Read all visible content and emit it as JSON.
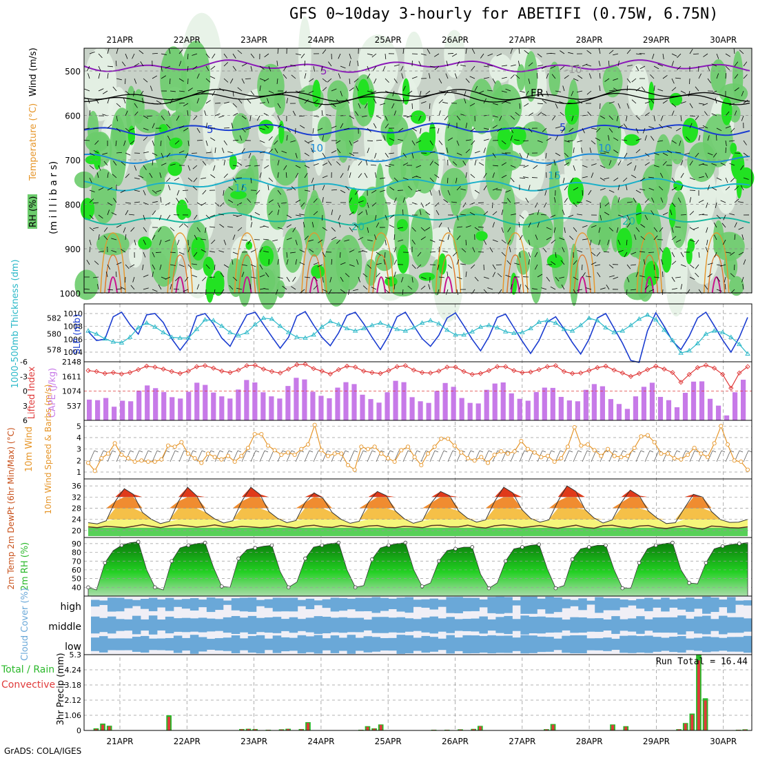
{
  "title": "GFS 0~10day 3-hourly for ABETIFI (0.75W, 6.75N)",
  "credit": "GrADS: COLA/IGES",
  "dates": [
    "21APR",
    "22APR",
    "23APR",
    "24APR",
    "25APR",
    "26APR",
    "27APR",
    "28APR",
    "29APR",
    "30APR"
  ],
  "colors": {
    "rh_light": "#e6f2e6",
    "rh_mid": "#c8d2c8",
    "rh_green": "#6ccc6c",
    "rh_bright": "#22e222",
    "slp": "#1a3cd0",
    "thick": "#2ab8c8",
    "li": "#e03a3a",
    "cape": "#c77ae8",
    "wind10": "#e6962a",
    "precip_total": "#2ab82a",
    "precip_conv": "#e03a3a",
    "cloud": "#6aa8d8",
    "cloud_bg": "#f0eff6"
  },
  "panels": {
    "upper": {
      "label_y": "(m i l l i b a r s)",
      "label_rh": "RH (%)",
      "label_temp": "Temperature (°C)",
      "label_wind": "Wind (m/s)",
      "levels": [
        "500",
        "600",
        "700",
        "800",
        "900",
        "1000"
      ],
      "contours": [
        "5",
        "FR",
        "5",
        "5",
        "10",
        "10",
        "15",
        "15",
        "20",
        "20",
        "-10"
      ]
    },
    "slp": {
      "label_left": "1000-500mb Thickness (dm)",
      "label_right": "SLP (mb)",
      "ticks_left": [
        "582",
        "580",
        "578"
      ],
      "ticks_right": [
        "1010",
        "1008",
        "1006",
        "1004"
      ]
    },
    "cape": {
      "label_left": "Lifted Index",
      "label_right": "CAPE (J/kg)",
      "ticks_left": [
        "-6",
        "-3",
        "0",
        "3",
        "6"
      ],
      "ticks_right": [
        "2148",
        "1611",
        "1074",
        "537"
      ]
    },
    "wind10": {
      "label": "10m Wind Speed & Barbs (m/s)",
      "ticks": [
        "5",
        "4",
        "3",
        "2",
        "1"
      ]
    },
    "temp2m": {
      "label": "2m Temp 2m DewPt (6hr Min/Max) (°C)",
      "ticks": [
        "36",
        "32",
        "28",
        "24",
        "20"
      ]
    },
    "rh2m": {
      "label": "2m RH (%)",
      "ticks": [
        "90",
        "80",
        "70",
        "60",
        "50",
        "40"
      ]
    },
    "cloud": {
      "label": "Cloud Cover (%)",
      "levels": [
        "high",
        "middle",
        "low"
      ]
    },
    "precip": {
      "label_total": "Total / Rain",
      "label_conv": "Convective",
      "label_y": "3hr Precip (mm)",
      "ticks": [
        "5.3",
        "4.24",
        "3.18",
        "2.12",
        "1.06",
        "0"
      ],
      "run_total": "Run Total = 16.44"
    }
  },
  "chart_data": [
    {
      "type": "line",
      "title": "1000-500mb Thickness (dm) / SLP (mb)",
      "series": [
        {
          "name": "SLP (mb)",
          "values": [
            1007.2,
            1005.8,
            1006.0,
            1009.5,
            1010.2,
            1008.3,
            1006.8,
            1009.8,
            1010.0,
            1008.6,
            1006.1,
            1004.3,
            1006.0,
            1009.6,
            1010.0,
            1008.4,
            1006.2,
            1004.9,
            1007.4,
            1009.8,
            1010.2,
            1008.3,
            1006.4,
            1004.6,
            1006.3,
            1009.6,
            1010.3,
            1008.2,
            1006.3,
            1005.0,
            1007.0,
            1009.7,
            1010.2,
            1008.4,
            1006.3,
            1004.4,
            1006.6,
            1009.5,
            1010.2,
            1008.1,
            1006.1,
            1004.9,
            1006.6,
            1009.3,
            1010.1,
            1008.1,
            1006.0,
            1004.2,
            1006.4,
            1009.4,
            1009.9,
            1007.8,
            1005.7,
            1003.8,
            1005.8,
            1008.7,
            1009.5,
            1007.6,
            1005.5,
            1003.7,
            1006.0,
            1009.3,
            1010.0,
            1007.7,
            1005.4,
            1002.7,
            1002.4,
            1007.3,
            1010.1,
            1008.0,
            1005.7,
            1004.4,
            1006.5,
            1009.3,
            1010.2,
            1008.1,
            1005.9,
            1004.0,
            1006.3,
            1009.4
          ]
        },
        {
          "name": "1000-500mb Thickness (dm)",
          "values": [
            580.4,
            580.0,
            579.4,
            579.0,
            578.9,
            579.6,
            580.8,
            581.4,
            580.9,
            580.2,
            579.6,
            579.5,
            579.5,
            580.6,
            581.8,
            581.7,
            581.0,
            580.2,
            579.8,
            580.2,
            581.2,
            582.0,
            581.9,
            581.0,
            580.2,
            579.6,
            579.5,
            579.9,
            580.9,
            581.6,
            581.2,
            580.7,
            580.4,
            580.7,
            581.1,
            581.4,
            581.0,
            580.6,
            580.4,
            580.8,
            581.4,
            581.7,
            581.3,
            580.5,
            579.9,
            579.9,
            580.3,
            580.9,
            581.1,
            580.8,
            580.3,
            580.1,
            580.2,
            580.7,
            581.5,
            581.7,
            581.4,
            580.6,
            580.4,
            581.1,
            582.0,
            581.7,
            580.8,
            580.2,
            580.4,
            581.1,
            581.9,
            582.4,
            581.8,
            580.5,
            579.2,
            577.6,
            577.9,
            578.8,
            580.0,
            580.4,
            580.2,
            579.6,
            578.7,
            577.5
          ]
        }
      ]
    },
    {
      "type": "bar",
      "title": "Lifted Index / CAPE (J/kg)",
      "series": [
        {
          "name": "CAPE (J/kg)",
          "values": [
            760,
            740,
            820,
            500,
            720,
            700,
            1090,
            1280,
            1180,
            1040,
            850,
            800,
            1050,
            1380,
            1300,
            1020,
            880,
            800,
            1130,
            1480,
            1390,
            1030,
            880,
            800,
            1260,
            1560,
            1500,
            1050,
            900,
            810,
            1200,
            1400,
            1330,
            940,
            780,
            650,
            1030,
            1450,
            1400,
            850,
            700,
            640,
            1080,
            1370,
            1230,
            820,
            640,
            620,
            1120,
            1350,
            1390,
            990,
            790,
            720,
            1040,
            1200,
            1190,
            860,
            730,
            700,
            1120,
            1330,
            1250,
            780,
            600,
            420,
            880,
            1230,
            1380,
            860,
            740,
            480,
            1010,
            1420,
            1430,
            790,
            540,
            180,
            1030,
            1490
          ]
        },
        {
          "name": "Lifted Index",
          "values": [
            -4.2,
            -4.0,
            -3.6,
            -3.8,
            -3.5,
            -3.8,
            -4.4,
            -5.1,
            -4.9,
            -4.5,
            -4.0,
            -3.6,
            -4.1,
            -5.0,
            -5.2,
            -4.7,
            -4.1,
            -3.8,
            -4.3,
            -5.2,
            -5.3,
            -4.5,
            -4.0,
            -3.7,
            -4.5,
            -5.4,
            -5.5,
            -4.6,
            -4.1,
            -3.5,
            -4.4,
            -5.1,
            -4.9,
            -4.1,
            -3.8,
            -3.6,
            -4.2,
            -5.0,
            -5.2,
            -4.3,
            -3.8,
            -3.7,
            -4.1,
            -4.9,
            -4.9,
            -4.0,
            -3.4,
            -3.6,
            -4.2,
            -5.0,
            -5.0,
            -4.2,
            -3.8,
            -3.9,
            -4.4,
            -5.0,
            -5.2,
            -4.0,
            -3.6,
            -3.7,
            -4.2,
            -4.8,
            -5.1,
            -4.3,
            -3.7,
            -3.0,
            -3.6,
            -4.4,
            -5.1,
            -4.5,
            -3.8,
            -1.8,
            -3.4,
            -4.8,
            -5.3,
            -4.7,
            -3.4,
            -0.6,
            -3.7,
            -5.0
          ]
        }
      ]
    },
    {
      "type": "line",
      "title": "10m Wind Speed & Barbs (m/s)",
      "series": [
        {
          "name": "10m Wind Speed",
          "values": [
            1.8,
            1.1,
            2.2,
            2.6,
            3.5,
            2.5,
            2.2,
            1.9,
            2.0,
            1.9,
            1.9,
            2.1,
            3.3,
            3.2,
            3.6,
            2.6,
            2.2,
            1.8,
            2.6,
            2.3,
            2.1,
            2.4,
            1.9,
            2.4,
            3.1,
            4.3,
            4.3,
            3.3,
            2.9,
            2.5,
            2.7,
            2.5,
            3.0,
            3.4,
            5.1,
            2.9,
            2.4,
            2.6,
            2.6,
            1.6,
            1.2,
            3.2,
            3.0,
            3.2,
            2.6,
            2.2,
            1.9,
            2.9,
            3.2,
            2.3,
            1.6,
            2.6,
            3.2,
            3.9,
            3.9,
            3.3,
            2.7,
            2.2,
            2.0,
            2.3,
            1.8,
            2.5,
            2.8,
            2.6,
            2.8,
            3.7,
            3.0,
            2.7,
            2.3,
            2.4,
            1.9,
            2.2,
            3.2,
            4.9,
            3.3,
            3.4,
            2.9,
            2.4,
            3.0,
            2.4,
            2.3,
            2.4,
            3.1,
            4.1,
            4.2,
            3.6,
            2.6,
            2.6,
            2.2,
            2.1,
            2.5,
            3.1,
            2.6,
            2.3,
            3.5,
            5.0,
            3.4,
            2.0,
            1.9,
            1.2
          ]
        }
      ]
    },
    {
      "type": "area",
      "title": "2m Temp / 2m DewPt (°C)",
      "series": [
        {
          "name": "2m Temp",
          "values": [
            22.8,
            22.4,
            23.5,
            30.5,
            35.0,
            33.0,
            26.5,
            24.0,
            22.5,
            23.3,
            30.5,
            35.5,
            32.5,
            26.5,
            24.2,
            22.7,
            23.5,
            30.5,
            35.5,
            33.0,
            26.8,
            24.3,
            22.8,
            23.6,
            30.0,
            33.5,
            31.5,
            26.5,
            24.0,
            22.6,
            23.3,
            30.0,
            34.0,
            32.5,
            27.0,
            24.2,
            22.6,
            23.5,
            30.0,
            34.0,
            32.5,
            27.0,
            24.4,
            23.0,
            23.8,
            30.5,
            35.5,
            33.5,
            27.5,
            24.3,
            23.0,
            23.8,
            30.5,
            36.0,
            34.0,
            27.5,
            24.5,
            22.7,
            23.8,
            30.0,
            34.5,
            32.5,
            27.0,
            24.4,
            22.5,
            22.8,
            28.0,
            33.0,
            32.0,
            26.8,
            23.9,
            22.9,
            23.0,
            24.0
          ]
        },
        {
          "name": "2m DewPt",
          "values": [
            21.3,
            21.0,
            21.5,
            21.3,
            21.0,
            21.5,
            22.1,
            21.5,
            21.0,
            21.7,
            22.0,
            21.6,
            21.2,
            21.5,
            22.0,
            21.4,
            21.0,
            21.5,
            21.3,
            21.0,
            21.2,
            21.8,
            21.3,
            20.9,
            21.6,
            21.9,
            21.3,
            21.1,
            21.8,
            21.4,
            21.0,
            21.6,
            21.8,
            21.1,
            21.0,
            21.5,
            21.3,
            21.0,
            21.8,
            21.9,
            21.3,
            21.3,
            21.9,
            21.2,
            20.9,
            21.7,
            22.0,
            21.6,
            21.0,
            21.4,
            21.8,
            21.2,
            20.8,
            21.4,
            21.9,
            21.1,
            20.8,
            21.7,
            21.9,
            21.3,
            20.9,
            21.6,
            21.8,
            21.0,
            20.7,
            21.3,
            21.7,
            21.0,
            20.5,
            21.6,
            21.4,
            21.0,
            20.9,
            21.3
          ]
        }
      ]
    },
    {
      "type": "area",
      "title": "2m RH (%)",
      "series": [
        {
          "name": "2m RH",
          "values": [
            40,
            37,
            68,
            82,
            88,
            91,
            92,
            60,
            40,
            37,
            70,
            85,
            88,
            90,
            91,
            63,
            41,
            40,
            73,
            83,
            85,
            87,
            88,
            58,
            40,
            46,
            73,
            86,
            88,
            90,
            91,
            60,
            40,
            42,
            72,
            85,
            88,
            90,
            91,
            60,
            41,
            45,
            70,
            82,
            84,
            86,
            86,
            55,
            39,
            45,
            70,
            84,
            86,
            88,
            89,
            61,
            39,
            42,
            72,
            84,
            86,
            88,
            88,
            60,
            39,
            39,
            68,
            84,
            88,
            90,
            91,
            60,
            45,
            44,
            68,
            84,
            87,
            89,
            90,
            91
          ]
        }
      ]
    },
    {
      "type": "bar",
      "title": "3hr Precip (mm)",
      "series": [
        {
          "name": "Total / Rain",
          "values": [
            0,
            0.15,
            0.48,
            0.33,
            0,
            0,
            0,
            0,
            0,
            0,
            0,
            0,
            1.06,
            0,
            0,
            0,
            0,
            0,
            0,
            0,
            0,
            0,
            0,
            0.1,
            0.12,
            0.1,
            0,
            0.05,
            0,
            0.08,
            0.12,
            0,
            0.1,
            0.58,
            0,
            0,
            0,
            0,
            0,
            0,
            0,
            0.05,
            0.3,
            0.15,
            0.42,
            0,
            0,
            0,
            0,
            0,
            0,
            0,
            0.05,
            0,
            0.05,
            0,
            0.08,
            0,
            0.11,
            0.32,
            0,
            0,
            0,
            0,
            0,
            0,
            0,
            0,
            0,
            0.09,
            0.45,
            0,
            0,
            0,
            0,
            0,
            0,
            0,
            0,
            0.42,
            0,
            0.3,
            0,
            0,
            0,
            0,
            0,
            0,
            0,
            0.09,
            0.52,
            1.18,
            5.3,
            2.25,
            0,
            0,
            0,
            0,
            0.05,
            0.08
          ]
        },
        {
          "name": "Convective",
          "values": [
            0,
            0.1,
            0.4,
            0.28,
            0,
            0,
            0,
            0,
            0,
            0,
            0,
            0,
            0.95,
            0,
            0,
            0,
            0,
            0,
            0,
            0,
            0,
            0,
            0,
            0.08,
            0.1,
            0.08,
            0,
            0.04,
            0,
            0.06,
            0.1,
            0,
            0.08,
            0.52,
            0,
            0,
            0,
            0,
            0,
            0,
            0,
            0.04,
            0.25,
            0.12,
            0.38,
            0,
            0,
            0,
            0,
            0,
            0,
            0,
            0.04,
            0,
            0.04,
            0,
            0.06,
            0,
            0.09,
            0.28,
            0,
            0,
            0,
            0,
            0,
            0,
            0,
            0,
            0,
            0.07,
            0.4,
            0,
            0,
            0,
            0,
            0,
            0,
            0,
            0,
            0.38,
            0,
            0.26,
            0,
            0,
            0,
            0,
            0,
            0,
            0,
            0.07,
            0.48,
            1.1,
            4.9,
            2.1,
            0,
            0,
            0,
            0,
            0.04,
            0.06
          ]
        }
      ]
    }
  ]
}
